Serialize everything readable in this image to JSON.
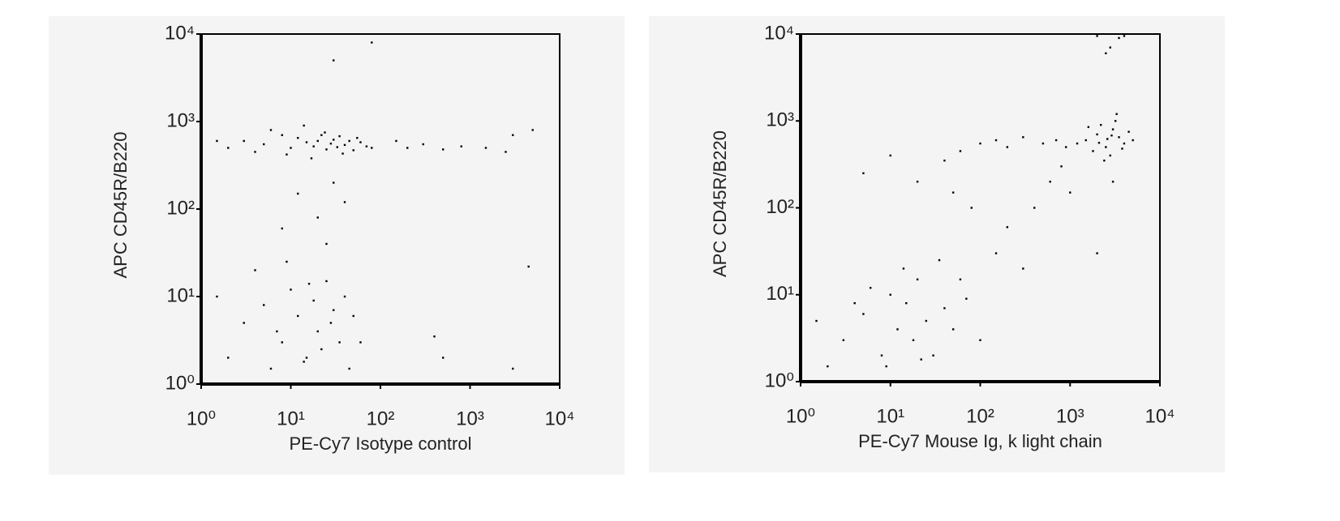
{
  "chart_data": [
    {
      "type": "scatter",
      "xlabel": "PE-Cy7 Isotype control",
      "ylabel": "APC CD45R/B220",
      "color": "#000000",
      "log_x": true,
      "log_y": true,
      "xlim": [
        1,
        10000
      ],
      "ylim": [
        1,
        10000
      ],
      "xticks": [
        {
          "value": 1,
          "label": "10⁰"
        },
        {
          "value": 10,
          "label": "10¹"
        },
        {
          "value": 100,
          "label": "10²"
        },
        {
          "value": 1000,
          "label": "10³"
        },
        {
          "value": 10000,
          "label": "10⁴"
        }
      ],
      "yticks": [
        {
          "value": 1,
          "label": "10⁰"
        },
        {
          "value": 10,
          "label": "10¹"
        },
        {
          "value": 100,
          "label": "10²"
        },
        {
          "value": 1000,
          "label": "10³"
        },
        {
          "value": 10000,
          "label": "10⁴"
        }
      ],
      "x": [
        3,
        5,
        8,
        10,
        12,
        15,
        18,
        20,
        22,
        25,
        28,
        30,
        33,
        35,
        40,
        45,
        50,
        60,
        70,
        2,
        4,
        6,
        9,
        14,
        17,
        24,
        38,
        55,
        80,
        1.5,
        150,
        200,
        300,
        500,
        800,
        1500,
        3000,
        5000,
        2500,
        12,
        20,
        30,
        8,
        40,
        25,
        3,
        5,
        8,
        10,
        12,
        15,
        18,
        20,
        25,
        30,
        35,
        40,
        2,
        4,
        6,
        9,
        14,
        22,
        28,
        50,
        60,
        1.5,
        7,
        16,
        45,
        4500,
        500,
        3000,
        30,
        80,
        400
      ],
      "values": [
        600,
        550,
        700,
        500,
        650,
        580,
        520,
        600,
        700,
        480,
        560,
        620,
        510,
        680,
        540,
        600,
        470,
        580,
        520,
        500,
        450,
        800,
        420,
        900,
        380,
        750,
        430,
        650,
        500,
        600,
        600,
        500,
        550,
        480,
        520,
        500,
        700,
        800,
        450,
        150,
        80,
        200,
        60,
        120,
        40,
        5,
        8,
        3,
        12,
        6,
        2,
        9,
        4,
        15,
        7,
        3,
        10,
        2,
        20,
        1.5,
        25,
        1.8,
        2.5,
        5,
        6,
        3,
        10,
        4,
        14,
        1.5,
        22,
        2,
        1.5,
        5000,
        8000,
        3.5
      ]
    },
    {
      "type": "scatter",
      "xlabel": "PE-Cy7 Mouse Ig, k light chain",
      "ylabel": "APC CD45R/B220",
      "color": "#000000",
      "log_x": true,
      "log_y": true,
      "xlim": [
        1,
        10000
      ],
      "ylim": [
        1,
        10000
      ],
      "xticks": [
        {
          "value": 1,
          "label": "10⁰"
        },
        {
          "value": 10,
          "label": "10¹"
        },
        {
          "value": 100,
          "label": "10²"
        },
        {
          "value": 1000,
          "label": "10³"
        },
        {
          "value": 10000,
          "label": "10⁴"
        }
      ],
      "yticks": [
        {
          "value": 1,
          "label": "10⁰"
        },
        {
          "value": 10,
          "label": "10¹"
        },
        {
          "value": 100,
          "label": "10²"
        },
        {
          "value": 1000,
          "label": "10³"
        },
        {
          "value": 10000,
          "label": "10⁴"
        }
      ],
      "x": [
        1500,
        2000,
        2500,
        3000,
        3500,
        4000,
        2200,
        2800,
        1800,
        3200,
        4500,
        1200,
        2600,
        3800,
        1600,
        5000,
        2400,
        3300,
        2100,
        2900,
        100,
        150,
        200,
        300,
        500,
        700,
        900,
        60,
        40,
        10,
        20,
        50,
        80,
        200,
        400,
        600,
        150,
        300,
        1000,
        800,
        5,
        2000,
        3000,
        3,
        5,
        8,
        10,
        12,
        15,
        18,
        20,
        25,
        30,
        40,
        6,
        9,
        14,
        22,
        50,
        70,
        100,
        4,
        2,
        35,
        60,
        1.5,
        2000,
        2800,
        3500,
        2500,
        4000
      ],
      "values": [
        600,
        700,
        500,
        800,
        650,
        550,
        900,
        400,
        450,
        1000,
        750,
        550,
        620,
        480,
        850,
        600,
        350,
        1200,
        560,
        680,
        550,
        600,
        500,
        650,
        550,
        600,
        500,
        450,
        350,
        400,
        200,
        150,
        100,
        60,
        100,
        200,
        30,
        20,
        150,
        300,
        250,
        30,
        200,
        3,
        6,
        2,
        10,
        4,
        8,
        3,
        15,
        5,
        2,
        7,
        12,
        1.5,
        20,
        1.8,
        4,
        9,
        3,
        8,
        1.5,
        25,
        15,
        5,
        9500,
        7000,
        9000,
        6000,
        9500
      ]
    }
  ]
}
